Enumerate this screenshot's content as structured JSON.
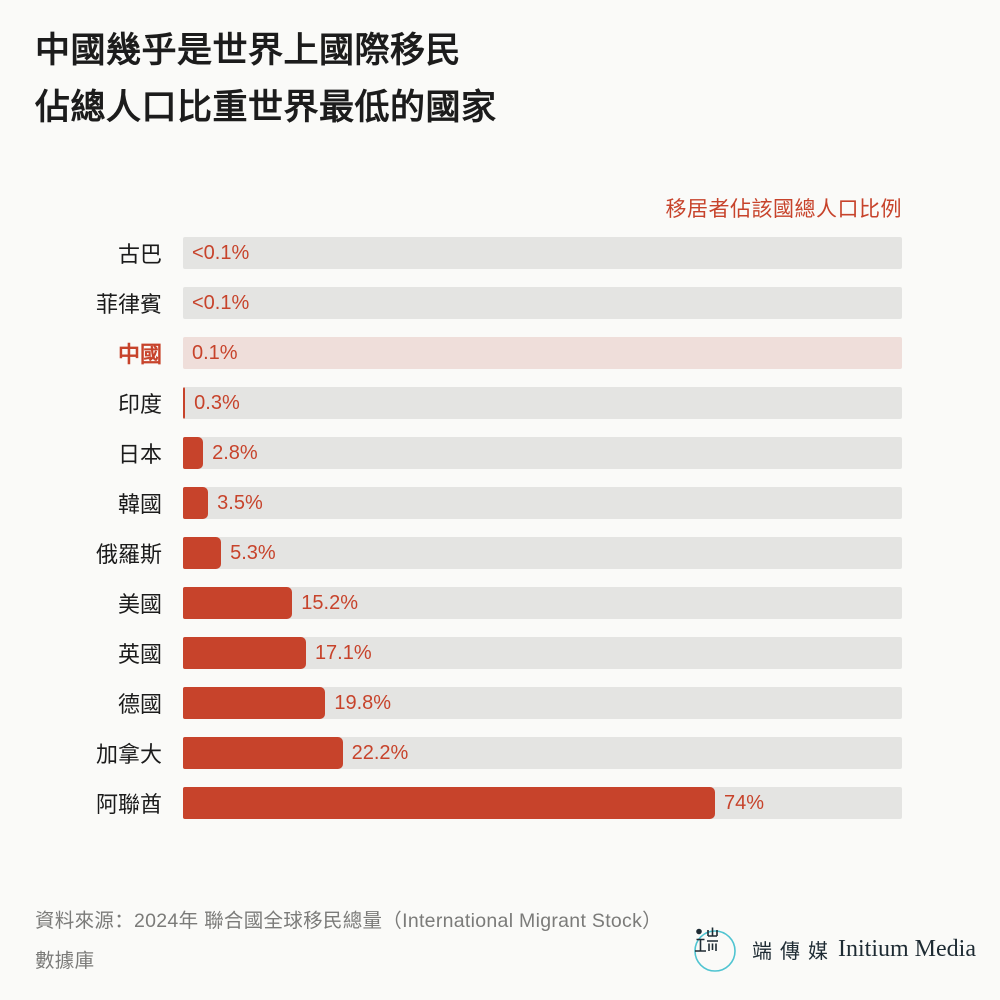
{
  "title": {
    "line1": "中國幾乎是世界上國際移民",
    "line2": "佔總人口比重世界最低的國家"
  },
  "legend_label": "移居者佔該國總人口比例",
  "chart_data": {
    "type": "bar",
    "orientation": "horizontal",
    "unit": "percent",
    "axis_range": [
      0,
      100
    ],
    "grid": false,
    "legend": "移居者佔該國總人口比例",
    "legend_position": "top-right",
    "title": "中國幾乎是世界上國際移民佔總人口比重世界最低的國家",
    "rows": [
      {
        "label": "古巴",
        "value_label": "<0.1%",
        "bar_pct": 0,
        "highlight": false
      },
      {
        "label": "菲律賓",
        "value_label": "<0.1%",
        "bar_pct": 0,
        "highlight": false
      },
      {
        "label": "中國",
        "value_label": "0.1%",
        "bar_pct": 0.1,
        "highlight": true
      },
      {
        "label": "印度",
        "value_label": "0.3%",
        "bar_pct": 0.3,
        "highlight": false
      },
      {
        "label": "日本",
        "value_label": "2.8%",
        "bar_pct": 2.8,
        "highlight": false
      },
      {
        "label": "韓國",
        "value_label": "3.5%",
        "bar_pct": 3.5,
        "highlight": false
      },
      {
        "label": "俄羅斯",
        "value_label": "5.3%",
        "bar_pct": 5.3,
        "highlight": false
      },
      {
        "label": "美國",
        "value_label": "15.2%",
        "bar_pct": 15.2,
        "highlight": false
      },
      {
        "label": "英國",
        "value_label": "17.1%",
        "bar_pct": 17.1,
        "highlight": false
      },
      {
        "label": "德國",
        "value_label": "19.8%",
        "bar_pct": 19.8,
        "highlight": false
      },
      {
        "label": "加拿大",
        "value_label": "22.2%",
        "bar_pct": 22.2,
        "highlight": false
      },
      {
        "label": "阿聯酋",
        "value_label": "74%",
        "bar_pct": 74,
        "highlight": false
      }
    ]
  },
  "footer": {
    "source_line1": "資料來源：2024年 聯合國全球移民總量（International Migrant Stock）",
    "source_line2": "數據庫"
  },
  "logo": {
    "cjk": "端傳媒",
    "latin": "Initium Media"
  },
  "colors": {
    "accent": "#C7432B",
    "track": "#E4E4E2",
    "china_track": "#EFDEDA",
    "background": "#FAFAF8",
    "logo_teal": "#4FC4D1",
    "logo_text": "#1E2B33"
  }
}
